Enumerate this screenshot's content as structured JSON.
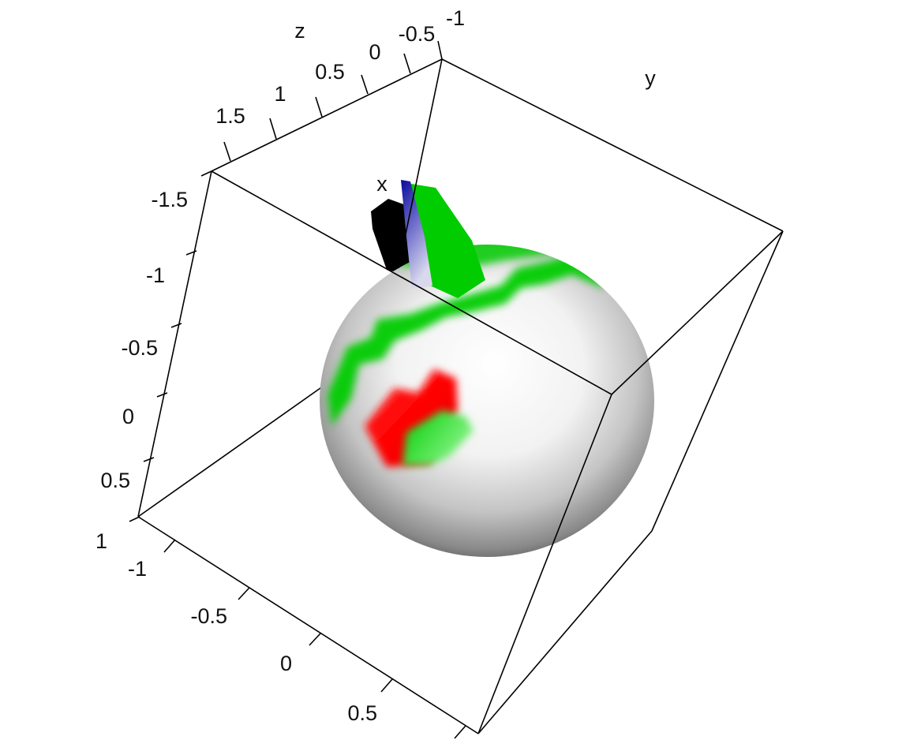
{
  "chart_data": {
    "type": "3d-surface",
    "axes": {
      "x": {
        "label": "x",
        "ticks": [
          "-1.5",
          "-1",
          "-0.5",
          "0",
          "0.5",
          "1"
        ]
      },
      "y": {
        "label": "y",
        "ticks": [
          "-1",
          "-0.5",
          "0",
          "0.5"
        ]
      },
      "z": {
        "label": "z",
        "ticks": [
          "1.5",
          "1",
          "0.5",
          "0",
          "-0.5",
          "-1"
        ]
      }
    },
    "box": "on",
    "objects": [
      {
        "name": "sphere",
        "color": "#ffffff"
      },
      {
        "name": "green band",
        "color": "#00cc00"
      },
      {
        "name": "red patch",
        "color": "#ff0000"
      },
      {
        "name": "blue fin",
        "color": "#1a1aa0"
      },
      {
        "name": "black fin",
        "color": "#000000"
      }
    ]
  }
}
